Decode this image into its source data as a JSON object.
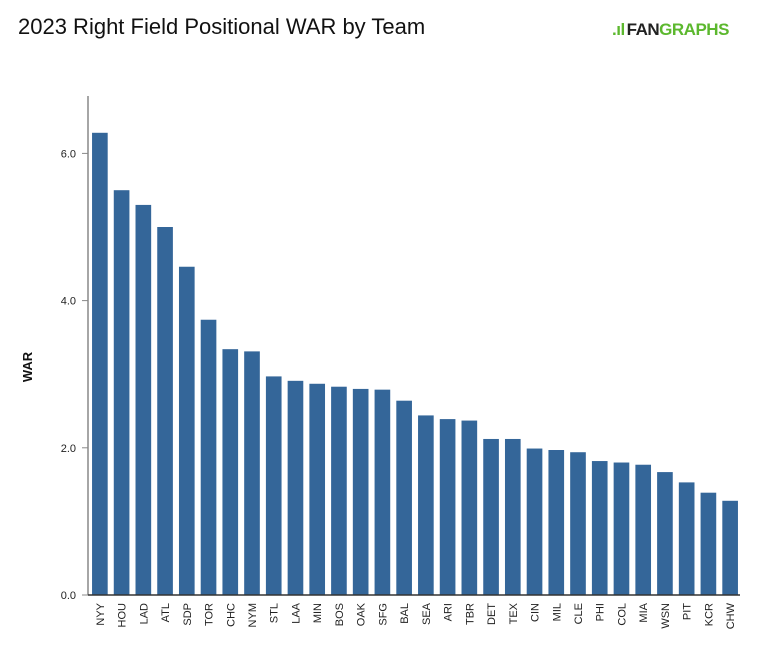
{
  "title": "2023 Right Field Positional WAR by Team",
  "logo": {
    "mark": ".ıl",
    "fan": "FAN",
    "graphs": "GRAPHS"
  },
  "chart_data": {
    "type": "bar",
    "title": "2023 Right Field Positional WAR by Team",
    "xlabel": "",
    "ylabel": "WAR",
    "ylim": [
      0,
      6.8
    ],
    "yticks": [
      "0.0",
      "2.0",
      "4.0",
      "6.0"
    ],
    "grid": false,
    "bar_color": "#346699",
    "categories": [
      "NYY",
      "HOU",
      "LAD",
      "ATL",
      "SDP",
      "TOR",
      "CHC",
      "NYM",
      "STL",
      "LAA",
      "MIN",
      "BOS",
      "OAK",
      "SFG",
      "BAL",
      "SEA",
      "ARI",
      "TBR",
      "DET",
      "TEX",
      "CIN",
      "MIL",
      "CLE",
      "PHI",
      "COL",
      "MIA",
      "WSN",
      "PIT",
      "KCR",
      "CHW"
    ],
    "values": [
      6.28,
      5.5,
      5.3,
      5.0,
      4.46,
      3.74,
      3.34,
      3.31,
      2.97,
      2.91,
      2.87,
      2.83,
      2.8,
      2.79,
      2.64,
      2.44,
      2.39,
      2.37,
      2.12,
      2.12,
      1.99,
      1.97,
      1.94,
      1.82,
      1.8,
      1.77,
      1.67,
      1.53,
      1.39,
      1.28
    ]
  }
}
